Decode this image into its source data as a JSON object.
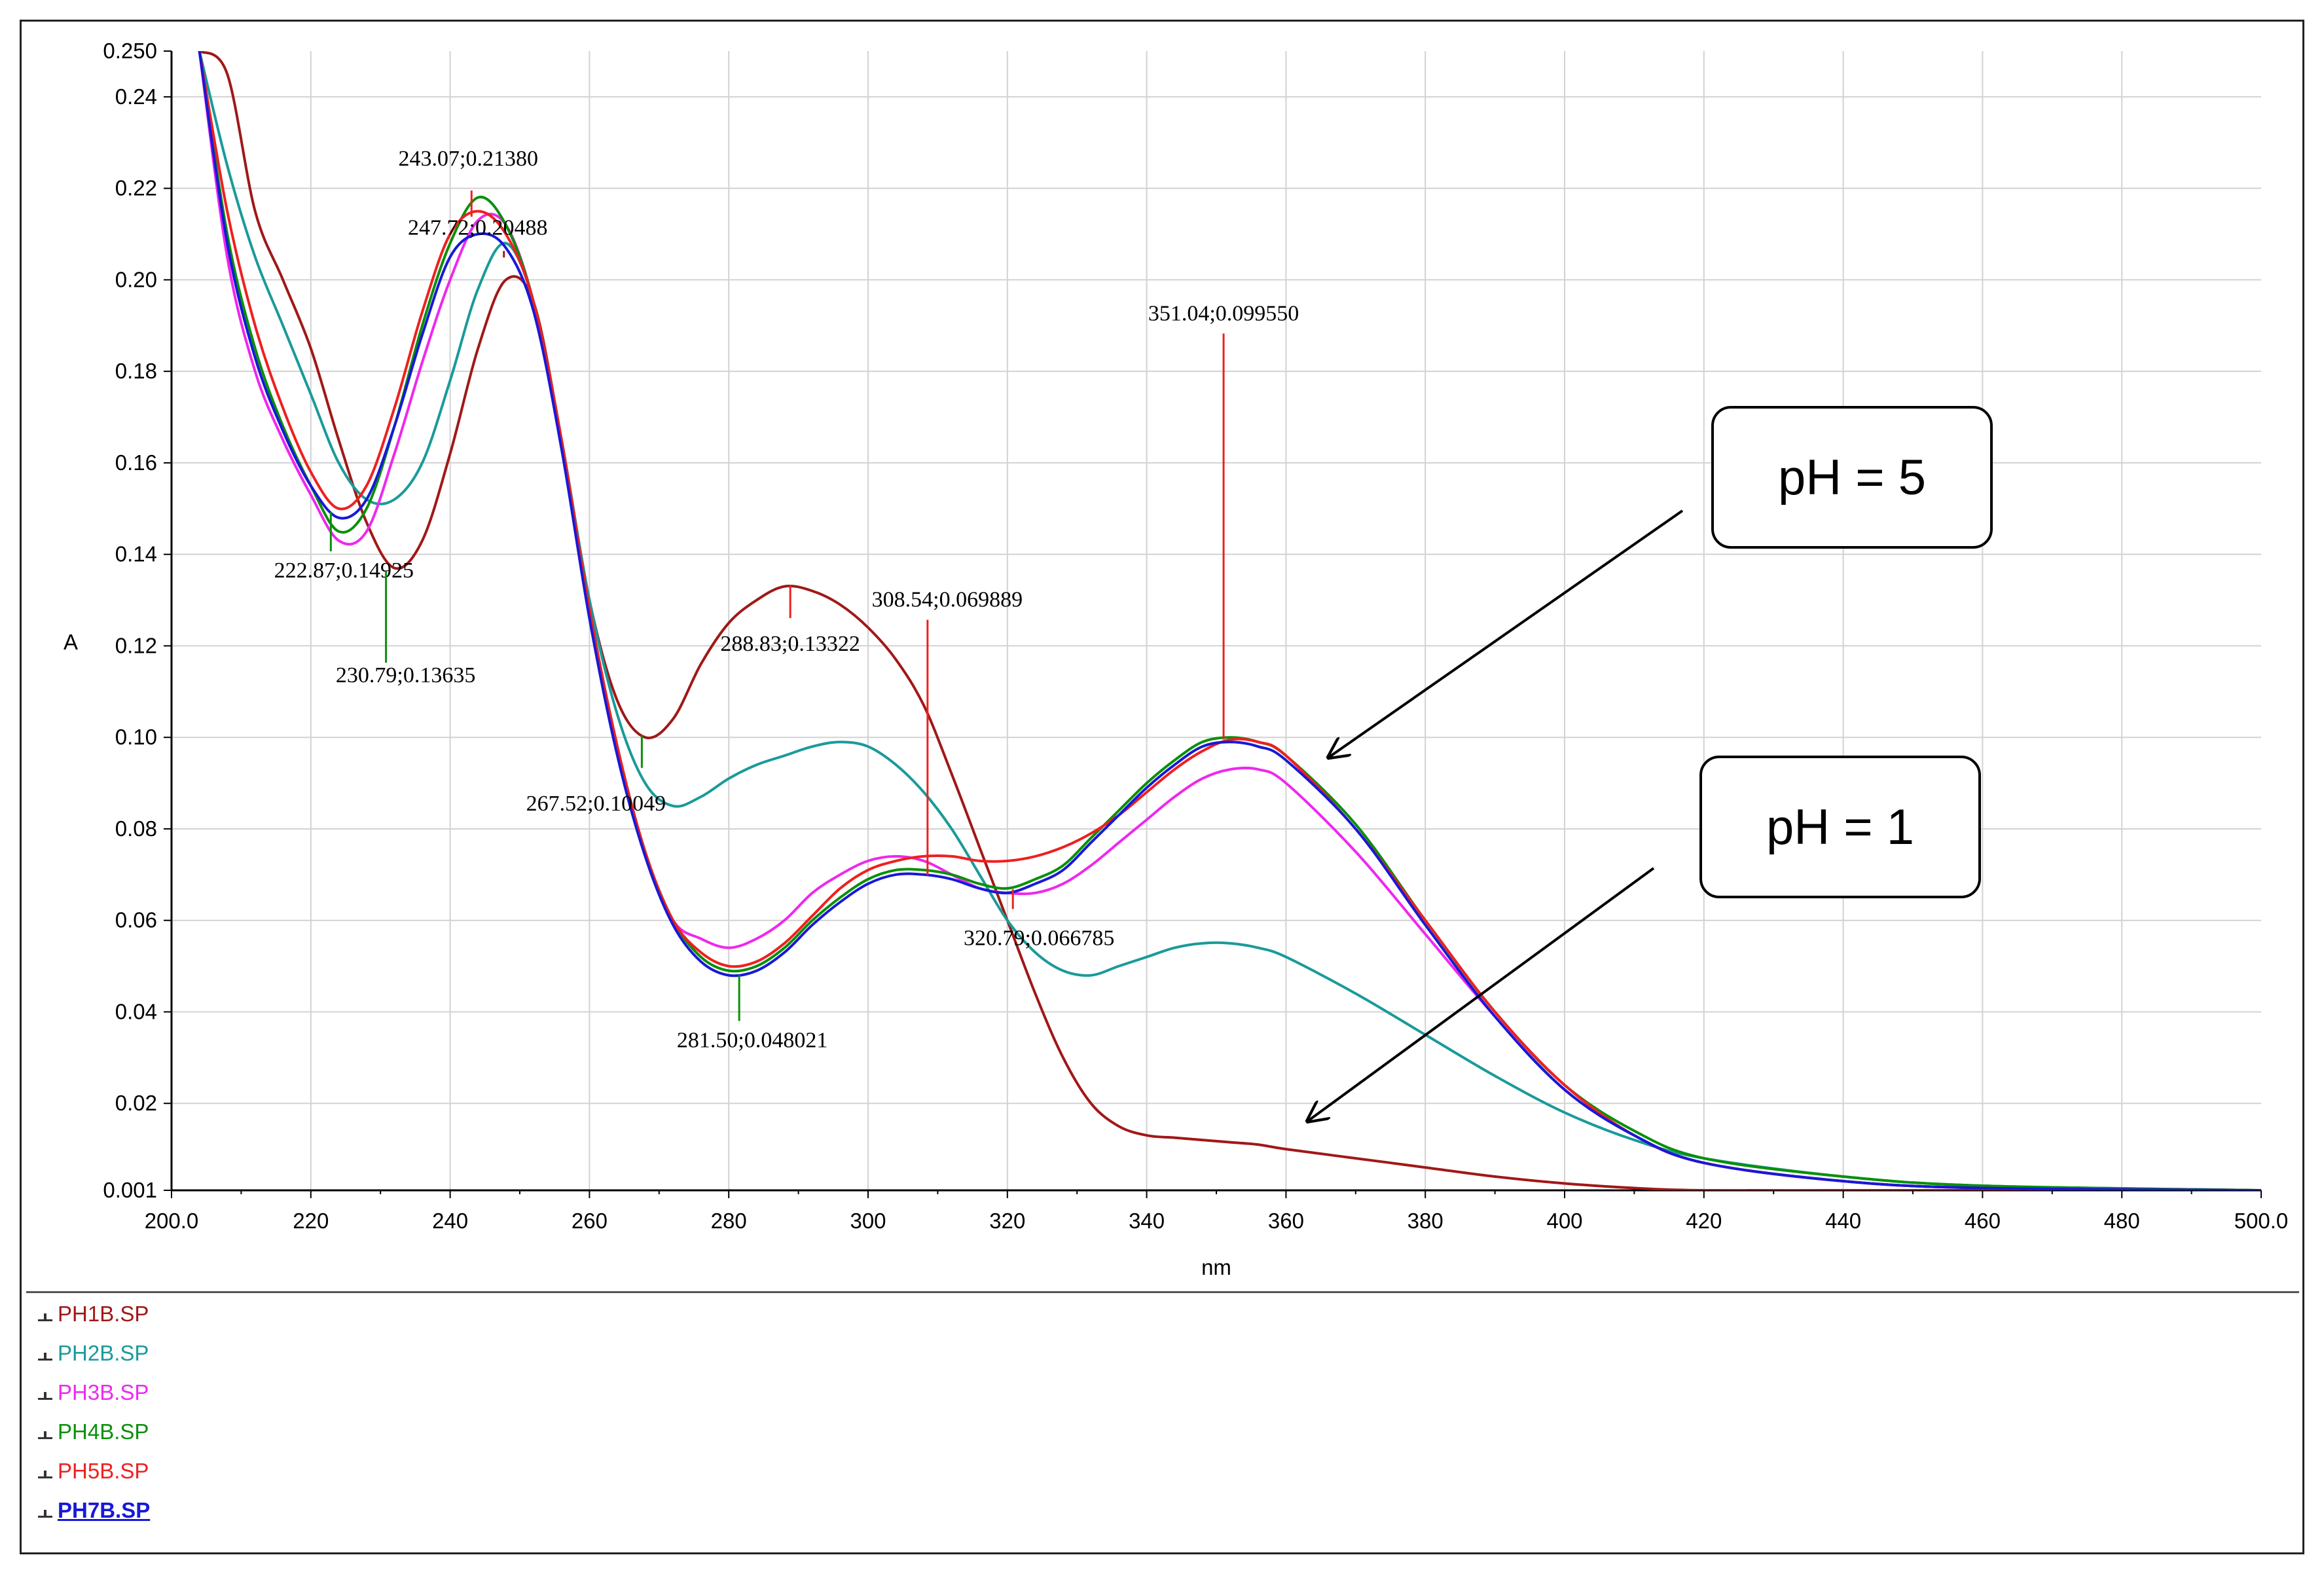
{
  "chart_data": {
    "type": "line",
    "xlabel": "nm",
    "ylabel": "A",
    "xlim": [
      200.0,
      500.0
    ],
    "ylim": [
      0.001,
      0.25
    ],
    "grid": true,
    "x_tick_labels": [
      "200.0",
      "220",
      "240",
      "260",
      "280",
      "300",
      "320",
      "340",
      "360",
      "380",
      "400",
      "420",
      "440",
      "460",
      "480",
      "500.0"
    ],
    "y_tick_labels": [
      "0.001",
      "0.02",
      "0.04",
      "0.06",
      "0.08",
      "0.10",
      "0.12",
      "0.14",
      "0.16",
      "0.18",
      "0.20",
      "0.22",
      "0.24",
      "0.250"
    ],
    "series": [
      {
        "name": "PH1B.SP",
        "color": "#a01818",
        "x": [
          204,
          208,
          212,
          216,
          220,
          224,
          228,
          232,
          236,
          240,
          244,
          248,
          252,
          256,
          260,
          264,
          268,
          272,
          276,
          280,
          284,
          288,
          292,
          296,
          300,
          304,
          308,
          312,
          316,
          320,
          324,
          328,
          332,
          336,
          340,
          344,
          348,
          352,
          356,
          360,
          370,
          380,
          390,
          400,
          410,
          420,
          440,
          460,
          500
        ],
        "y": [
          0.25,
          0.245,
          0.215,
          0.2,
          0.185,
          0.165,
          0.147,
          0.137,
          0.143,
          0.162,
          0.185,
          0.2,
          0.195,
          0.165,
          0.13,
          0.108,
          0.1,
          0.104,
          0.116,
          0.125,
          0.13,
          0.133,
          0.132,
          0.129,
          0.124,
          0.117,
          0.107,
          0.092,
          0.076,
          0.06,
          0.044,
          0.03,
          0.02,
          0.015,
          0.013,
          0.0125,
          0.012,
          0.0115,
          0.011,
          0.01,
          0.008,
          0.006,
          0.004,
          0.0025,
          0.0015,
          0.001,
          0.001,
          0.001,
          0.001
        ]
      },
      {
        "name": "PH2B.SP",
        "color": "#1a9a9a",
        "x": [
          204,
          208,
          212,
          216,
          220,
          224,
          228,
          232,
          236,
          240,
          244,
          248,
          252,
          256,
          260,
          264,
          268,
          272,
          276,
          280,
          284,
          288,
          292,
          296,
          300,
          304,
          308,
          312,
          316,
          320,
          324,
          328,
          332,
          336,
          340,
          344,
          348,
          352,
          356,
          360,
          370,
          380,
          390,
          400,
          410,
          420,
          440,
          460,
          500
        ],
        "y": [
          0.25,
          0.225,
          0.205,
          0.19,
          0.175,
          0.16,
          0.152,
          0.152,
          0.16,
          0.178,
          0.198,
          0.208,
          0.195,
          0.165,
          0.13,
          0.105,
          0.09,
          0.085,
          0.087,
          0.091,
          0.094,
          0.096,
          0.098,
          0.099,
          0.098,
          0.094,
          0.088,
          0.08,
          0.07,
          0.06,
          0.053,
          0.049,
          0.048,
          0.05,
          0.052,
          0.054,
          0.055,
          0.055,
          0.054,
          0.052,
          0.044,
          0.035,
          0.026,
          0.018,
          0.012,
          0.008,
          0.004,
          0.002,
          0.001
        ]
      },
      {
        "name": "PH3B.SP",
        "color": "#ee28ee",
        "x": [
          204,
          208,
          212,
          216,
          220,
          224,
          228,
          232,
          236,
          240,
          244,
          248,
          252,
          256,
          260,
          264,
          268,
          272,
          276,
          280,
          284,
          288,
          292,
          296,
          300,
          304,
          308,
          312,
          316,
          320,
          324,
          328,
          332,
          336,
          340,
          344,
          348,
          352,
          356,
          360,
          370,
          380,
          390,
          400,
          410,
          420,
          440,
          460,
          500
        ],
        "y": [
          0.25,
          0.205,
          0.18,
          0.165,
          0.153,
          0.143,
          0.145,
          0.162,
          0.182,
          0.2,
          0.213,
          0.212,
          0.195,
          0.165,
          0.128,
          0.098,
          0.075,
          0.06,
          0.056,
          0.054,
          0.056,
          0.06,
          0.066,
          0.07,
          0.073,
          0.074,
          0.073,
          0.07,
          0.067,
          0.066,
          0.066,
          0.068,
          0.072,
          0.077,
          0.082,
          0.087,
          0.091,
          0.093,
          0.093,
          0.09,
          0.075,
          0.057,
          0.039,
          0.023,
          0.013,
          0.007,
          0.003,
          0.0015,
          0.001
        ]
      },
      {
        "name": "PH4B.SP",
        "color": "#0a900a",
        "x": [
          204,
          208,
          212,
          216,
          220,
          224,
          228,
          232,
          236,
          240,
          244,
          248,
          252,
          256,
          260,
          264,
          268,
          272,
          276,
          280,
          284,
          288,
          292,
          296,
          300,
          304,
          308,
          312,
          316,
          320,
          324,
          328,
          332,
          336,
          340,
          344,
          348,
          352,
          356,
          360,
          370,
          380,
          390,
          400,
          410,
          420,
          440,
          460,
          500
        ],
        "y": [
          0.25,
          0.21,
          0.185,
          0.168,
          0.155,
          0.145,
          0.15,
          0.168,
          0.19,
          0.208,
          0.218,
          0.212,
          0.195,
          0.165,
          0.128,
          0.098,
          0.075,
          0.06,
          0.052,
          0.049,
          0.05,
          0.054,
          0.06,
          0.065,
          0.069,
          0.071,
          0.071,
          0.07,
          0.068,
          0.067,
          0.069,
          0.072,
          0.078,
          0.084,
          0.09,
          0.095,
          0.099,
          0.1,
          0.099,
          0.096,
          0.081,
          0.06,
          0.04,
          0.024,
          0.014,
          0.008,
          0.004,
          0.002,
          0.001
        ]
      },
      {
        "name": "PH5B.SP",
        "color": "#ee2020",
        "x": [
          204,
          208,
          212,
          216,
          220,
          224,
          228,
          232,
          236,
          240,
          244,
          248,
          252,
          256,
          260,
          264,
          268,
          272,
          276,
          280,
          284,
          288,
          292,
          296,
          300,
          304,
          308,
          312,
          316,
          320,
          324,
          328,
          332,
          336,
          340,
          344,
          348,
          352,
          356,
          360,
          370,
          380,
          390,
          400,
          410,
          420,
          440,
          460,
          500
        ],
        "y": [
          0.25,
          0.215,
          0.19,
          0.172,
          0.158,
          0.15,
          0.155,
          0.172,
          0.193,
          0.21,
          0.215,
          0.21,
          0.195,
          0.165,
          0.128,
          0.098,
          0.075,
          0.06,
          0.053,
          0.05,
          0.051,
          0.055,
          0.061,
          0.067,
          0.071,
          0.073,
          0.074,
          0.074,
          0.073,
          0.073,
          0.074,
          0.076,
          0.079,
          0.083,
          0.088,
          0.093,
          0.097,
          0.0995,
          0.099,
          0.096,
          0.08,
          0.06,
          0.04,
          0.024,
          0.013,
          0.007,
          0.003,
          0.0015,
          0.001
        ]
      },
      {
        "name": "PH7B.SP",
        "color": "#1818d8",
        "x": [
          204,
          208,
          212,
          216,
          220,
          224,
          228,
          232,
          236,
          240,
          244,
          248,
          252,
          256,
          260,
          264,
          268,
          272,
          276,
          280,
          284,
          288,
          292,
          296,
          300,
          304,
          308,
          312,
          316,
          320,
          324,
          328,
          332,
          336,
          340,
          344,
          348,
          352,
          356,
          360,
          370,
          380,
          390,
          400,
          410,
          420,
          440,
          460,
          500
        ],
        "y": [
          0.25,
          0.208,
          0.183,
          0.167,
          0.155,
          0.148,
          0.152,
          0.168,
          0.188,
          0.205,
          0.21,
          0.207,
          0.193,
          0.163,
          0.126,
          0.096,
          0.074,
          0.059,
          0.051,
          0.048,
          0.049,
          0.053,
          0.059,
          0.064,
          0.068,
          0.07,
          0.07,
          0.069,
          0.067,
          0.066,
          0.068,
          0.071,
          0.077,
          0.083,
          0.089,
          0.094,
          0.098,
          0.099,
          0.098,
          0.095,
          0.08,
          0.059,
          0.039,
          0.023,
          0.013,
          0.007,
          0.003,
          0.0015,
          0.001
        ]
      }
    ],
    "annotations": [
      {
        "text": "243.07;0.21380",
        "x": 243.07,
        "y": 0.2138,
        "color": "#ee2020"
      },
      {
        "text": "247.72;0.20488",
        "x": 247.72,
        "y": 0.20488,
        "color": "#a01818"
      },
      {
        "text": "351.04;0.099550",
        "x": 351.04,
        "y": 0.09955,
        "color": "#ee2020"
      },
      {
        "text": "222.87;0.14925",
        "x": 222.87,
        "y": 0.14925,
        "color": "#0a900a"
      },
      {
        "text": "230.79;0.13635",
        "x": 230.79,
        "y": 0.13635,
        "color": "#0a900a"
      },
      {
        "text": "308.54;0.069889",
        "x": 308.54,
        "y": 0.069889,
        "color": "#ee2020"
      },
      {
        "text": "288.83;0.13322",
        "x": 288.83,
        "y": 0.13322,
        "color": "#ee2020"
      },
      {
        "text": "267.52;0.10049",
        "x": 267.52,
        "y": 0.10049,
        "color": "#0a900a"
      },
      {
        "text": "320.79;0.066785",
        "x": 320.79,
        "y": 0.066785,
        "color": "#ee2020"
      },
      {
        "text": "281.50;0.048021",
        "x": 281.5,
        "y": 0.048021,
        "color": "#0a900a"
      }
    ],
    "callouts": [
      {
        "text": "pH = 5",
        "target_x": 366,
        "target_y": 0.0955
      },
      {
        "text": "pH = 1",
        "target_x": 363,
        "target_y": 0.016
      }
    ]
  },
  "legend": {
    "active_index": 5,
    "items": [
      {
        "label": "PH1B.SP",
        "color": "#a01818"
      },
      {
        "label": "PH2B.SP",
        "color": "#1a9a9a"
      },
      {
        "label": "PH3B.SP",
        "color": "#ee28ee"
      },
      {
        "label": "PH4B.SP",
        "color": "#0a900a"
      },
      {
        "label": "PH5B.SP",
        "color": "#ee2020"
      },
      {
        "label": "PH7B.SP",
        "color": "#1818d8"
      }
    ]
  }
}
